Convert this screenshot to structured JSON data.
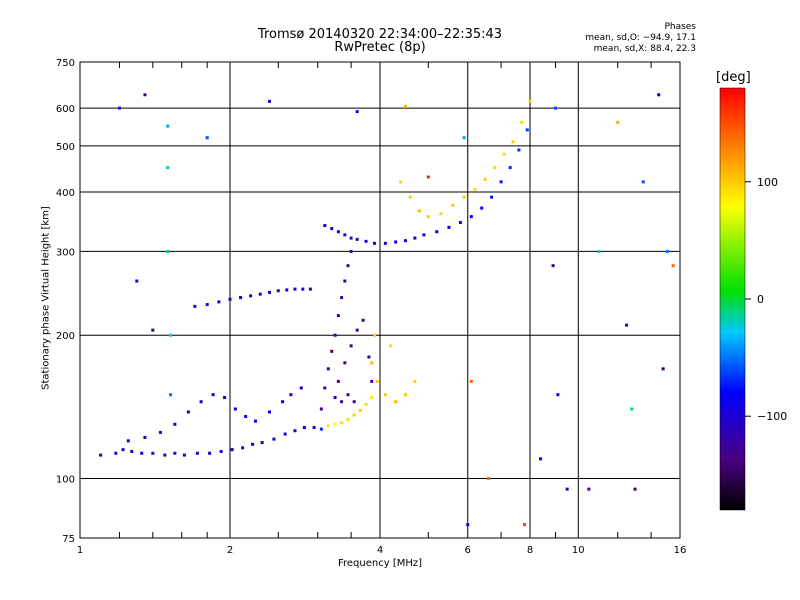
{
  "header": {
    "title_line1": "Tromsø 20140320 22:34:00–22:35:43",
    "title_line2": "RwPretec (8p)",
    "phases_label": "Phases",
    "stat_o": "mean, sd,O: −94.9, 17.1",
    "stat_x": "mean, sd,X:  88.4, 22.3"
  },
  "colorbar": {
    "unit_label": "[deg]",
    "range": [
      -180,
      180
    ],
    "tick_labels": [
      {
        "value": 100,
        "label": "100"
      },
      {
        "value": 0,
        "label": "0"
      },
      {
        "value": -100,
        "label": "−100"
      }
    ]
  },
  "chart_data": {
    "type": "scatter",
    "xlabel": "Frequency [MHz]",
    "ylabel": "Stationary phase Virtual Height [km]",
    "x_scale": "log",
    "y_scale": "log",
    "xlim": [
      1,
      16
    ],
    "ylim": [
      75,
      750
    ],
    "x_ticks": [
      1,
      2,
      4,
      6,
      8,
      10,
      16
    ],
    "x_tick_labels": [
      "1",
      "2",
      "4",
      "6",
      "8",
      "10",
      "16"
    ],
    "y_ticks": [
      75,
      100,
      200,
      300,
      400,
      500,
      600,
      750
    ],
    "y_tick_labels": [
      "75",
      "100",
      "200",
      "300",
      "400",
      "500",
      "600",
      "750"
    ],
    "grid": true,
    "color_scale": "phase in degrees (−180 black/purple, −100 blue, 0 green, 100 yellow, 180 red)",
    "points": [
      [
        1.1,
        112,
        -105
      ],
      [
        1.18,
        113,
        -100
      ],
      [
        1.22,
        115,
        -110
      ],
      [
        1.27,
        114,
        -105
      ],
      [
        1.33,
        113,
        -100
      ],
      [
        1.4,
        113,
        -98
      ],
      [
        1.48,
        112,
        -102
      ],
      [
        1.55,
        113,
        -95
      ],
      [
        1.62,
        112,
        -100
      ],
      [
        1.72,
        113,
        -97
      ],
      [
        1.82,
        113,
        -100
      ],
      [
        1.92,
        114,
        -95
      ],
      [
        2.02,
        115,
        -98
      ],
      [
        2.12,
        116,
        -92
      ],
      [
        2.22,
        118,
        -95
      ],
      [
        2.32,
        119,
        -90
      ],
      [
        2.45,
        121,
        -92
      ],
      [
        2.58,
        124,
        -88
      ],
      [
        2.7,
        126,
        -85
      ],
      [
        2.82,
        128,
        -80
      ],
      [
        2.95,
        128,
        -95
      ],
      [
        3.05,
        127,
        -70
      ],
      [
        3.15,
        129,
        70
      ],
      [
        3.25,
        130,
        80
      ],
      [
        3.35,
        131,
        90
      ],
      [
        3.45,
        133,
        95
      ],
      [
        3.55,
        136,
        100
      ],
      [
        3.65,
        139,
        100
      ],
      [
        3.75,
        143,
        95
      ],
      [
        3.85,
        148,
        90
      ],
      [
        1.25,
        120,
        -100
      ],
      [
        1.35,
        122,
        -98
      ],
      [
        1.45,
        125,
        -95
      ],
      [
        1.55,
        130,
        -100
      ],
      [
        1.65,
        138,
        -95
      ],
      [
        1.75,
        145,
        -98
      ],
      [
        1.85,
        150,
        -100
      ],
      [
        1.95,
        148,
        -92
      ],
      [
        2.05,
        140,
        -95
      ],
      [
        2.15,
        135,
        -90
      ],
      [
        2.25,
        132,
        -95
      ],
      [
        2.4,
        138,
        -90
      ],
      [
        2.55,
        145,
        -92
      ],
      [
        2.65,
        150,
        -95
      ],
      [
        2.78,
        155,
        -90
      ],
      [
        3.05,
        140,
        -125
      ],
      [
        3.1,
        155,
        -130
      ],
      [
        3.15,
        170,
        -128
      ],
      [
        3.2,
        185,
        -132
      ],
      [
        3.25,
        200,
        -130
      ],
      [
        3.3,
        220,
        -128
      ],
      [
        3.35,
        240,
        -125
      ],
      [
        3.4,
        260,
        -120
      ],
      [
        3.45,
        280,
        -118
      ],
      [
        3.5,
        300,
        -115
      ],
      [
        3.3,
        160,
        -135
      ],
      [
        3.4,
        175,
        -130
      ],
      [
        3.5,
        190,
        -128
      ],
      [
        3.6,
        205,
        -125
      ],
      [
        3.7,
        215,
        -122
      ],
      [
        3.8,
        180,
        -120
      ],
      [
        3.85,
        160,
        -118
      ],
      [
        3.55,
        145,
        -125
      ],
      [
        3.45,
        150,
        -130
      ],
      [
        3.35,
        145,
        -128
      ],
      [
        3.25,
        148,
        -125
      ],
      [
        1.7,
        230,
        -105
      ],
      [
        1.8,
        232,
        -100
      ],
      [
        1.9,
        235,
        -95
      ],
      [
        2.0,
        238,
        -102
      ],
      [
        2.1,
        240,
        -98
      ],
      [
        2.2,
        242,
        -100
      ],
      [
        2.3,
        244,
        -95
      ],
      [
        2.4,
        246,
        -100
      ],
      [
        2.5,
        248,
        -98
      ],
      [
        2.6,
        249,
        -95
      ],
      [
        2.7,
        250,
        -100
      ],
      [
        2.8,
        250,
        -98
      ],
      [
        2.9,
        250,
        -102
      ],
      [
        3.1,
        340,
        -110
      ],
      [
        3.2,
        335,
        -108
      ],
      [
        3.3,
        330,
        -105
      ],
      [
        3.4,
        325,
        -110
      ],
      [
        3.5,
        320,
        -108
      ],
      [
        3.6,
        318,
        -105
      ],
      [
        3.75,
        315,
        -100
      ],
      [
        3.9,
        312,
        -98
      ],
      [
        4.1,
        312,
        -95
      ],
      [
        4.3,
        314,
        -92
      ],
      [
        4.5,
        316,
        -90
      ],
      [
        4.7,
        320,
        -95
      ],
      [
        4.9,
        325,
        -92
      ],
      [
        5.2,
        330,
        -90
      ],
      [
        5.5,
        337,
        -88
      ],
      [
        5.8,
        345,
        -85
      ],
      [
        6.1,
        355,
        -82
      ],
      [
        6.4,
        370,
        -80
      ],
      [
        6.7,
        390,
        -78
      ],
      [
        7.0,
        420,
        -75
      ],
      [
        7.3,
        450,
        -72
      ],
      [
        7.6,
        490,
        -70
      ],
      [
        7.9,
        540,
        -68
      ],
      [
        4.4,
        420,
        95
      ],
      [
        4.6,
        390,
        100
      ],
      [
        4.8,
        365,
        105
      ],
      [
        5.0,
        355,
        100
      ],
      [
        5.3,
        360,
        95
      ],
      [
        5.6,
        375,
        98
      ],
      [
        5.9,
        390,
        100
      ],
      [
        6.2,
        405,
        95
      ],
      [
        6.5,
        425,
        100
      ],
      [
        6.8,
        450,
        98
      ],
      [
        7.1,
        480,
        95
      ],
      [
        7.4,
        510,
        100
      ],
      [
        7.7,
        560,
        95
      ],
      [
        8.0,
        620,
        100
      ],
      [
        3.85,
        175,
        110
      ],
      [
        3.95,
        160,
        105
      ],
      [
        4.1,
        150,
        100
      ],
      [
        4.3,
        145,
        110
      ],
      [
        4.5,
        150,
        105
      ],
      [
        4.7,
        160,
        100
      ],
      [
        3.9,
        200,
        100
      ],
      [
        4.2,
        190,
        95
      ],
      [
        1.5,
        550,
        -40
      ],
      [
        1.5,
        450,
        -20
      ],
      [
        1.5,
        300,
        -10
      ],
      [
        1.52,
        200,
        -30
      ],
      [
        1.52,
        150,
        -50
      ],
      [
        1.8,
        520,
        -60
      ],
      [
        1.2,
        600,
        -100
      ],
      [
        1.35,
        640,
        -130
      ],
      [
        8.9,
        280,
        -130
      ],
      [
        9.1,
        150,
        -100
      ],
      [
        9.5,
        95,
        -120
      ],
      [
        12.8,
        140,
        -10
      ],
      [
        13.5,
        420,
        -60
      ],
      [
        14.5,
        640,
        -80
      ],
      [
        15.1,
        300,
        -50
      ],
      [
        12.0,
        560,
        110
      ],
      [
        12.5,
        210,
        -100
      ],
      [
        6.1,
        160,
        140
      ],
      [
        6.6,
        100,
        140
      ],
      [
        7.8,
        80,
        160
      ],
      [
        5.0,
        430,
        170
      ],
      [
        14.8,
        170,
        -150
      ],
      [
        13.0,
        95,
        -140
      ],
      [
        11.0,
        300,
        -20
      ],
      [
        2.4,
        620,
        -100
      ],
      [
        3.6,
        590,
        -90
      ],
      [
        4.5,
        605,
        110
      ],
      [
        5.9,
        520,
        -40
      ],
      [
        6.0,
        80,
        -110
      ],
      [
        10.5,
        95,
        -130
      ],
      [
        1.4,
        205,
        -150
      ],
      [
        1.3,
        260,
        -100
      ],
      [
        15.5,
        280,
        140
      ],
      [
        9.0,
        600,
        -60
      ],
      [
        8.4,
        110,
        -80
      ]
    ]
  }
}
